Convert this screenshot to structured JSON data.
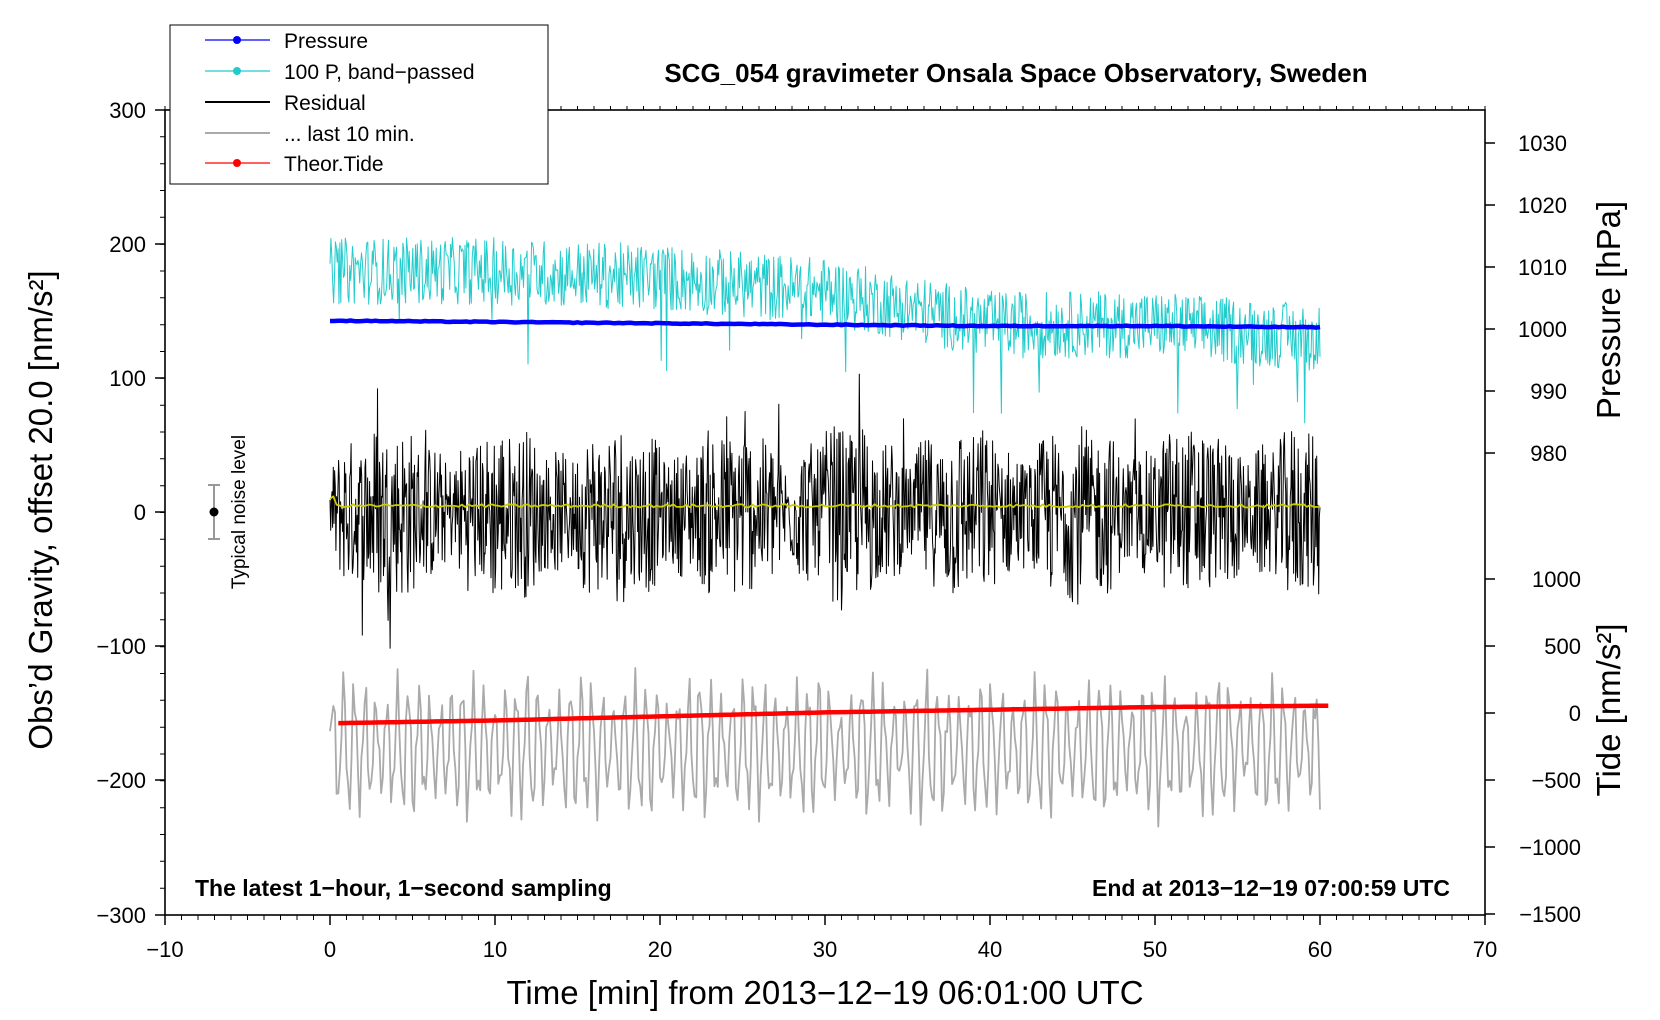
{
  "chart_data": {
    "type": "line",
    "title": "SCG_054 gravimeter Onsala Space Observatory, Sweden",
    "xlabel": "Time [min] from 2013−12−19 06:01:00 UTC",
    "ylabel_left": "Obs’d Gravity, offset 20.0 [nm/s²]",
    "ylabel_right_pressure": "Pressure [hPa]",
    "ylabel_right_tide": "Tide [nm/s²]",
    "xlim": [
      -10,
      70
    ],
    "ylim_left": [
      -300,
      300
    ],
    "x_ticks": [
      "−10",
      "0",
      "10",
      "20",
      "30",
      "40",
      "50",
      "60",
      "70"
    ],
    "x_tick_values": [
      -10,
      0,
      10,
      20,
      30,
      40,
      50,
      60,
      70
    ],
    "y_ticks_left": [
      "300",
      "200",
      "100",
      "0",
      "−100",
      "−200",
      "−300"
    ],
    "y_tick_values_left": [
      300,
      200,
      100,
      0,
      -100,
      -200,
      -300
    ],
    "pressure_axis": {
      "ticks": [
        "1030",
        "1020",
        "1010",
        "1000",
        "990",
        "980"
      ],
      "values": [
        1030,
        1020,
        1010,
        1000,
        990,
        980
      ],
      "gravity_equivalent_at_1000": 142.0,
      "gravity_per_hpa": 3.72
    },
    "tide_axis": {
      "ticks": [
        "1000",
        "500",
        "0",
        "−500",
        "−1000",
        "−1500"
      ],
      "values": [
        1000,
        500,
        0,
        -500,
        -1000,
        -1500
      ],
      "gravity_equivalent_at_0": -150.0,
      "gravity_per_unit": 0.1
    },
    "legend": [
      {
        "label": "Pressure",
        "color": "#0000ff",
        "marker": "dot"
      },
      {
        "label": "100 P, band−passed",
        "color": "#22cccc",
        "marker": "dot"
      },
      {
        "label": "Residual",
        "color": "#000000",
        "marker": "line"
      },
      {
        "label": "... last 10 min.",
        "color": "#aaaaaa",
        "marker": "line"
      },
      {
        "label": "Theor.Tide",
        "color": "#ff0000",
        "marker": "dot"
      }
    ],
    "series": [
      {
        "name": "Pressure",
        "color": "#0000ff",
        "x_range": [
          0,
          60
        ],
        "gravity_equiv": [
          [
            0,
            143
          ],
          [
            10,
            142
          ],
          [
            20,
            141
          ],
          [
            30,
            140
          ],
          [
            40,
            139
          ],
          [
            50,
            139
          ],
          [
            60,
            138
          ]
        ]
      },
      {
        "name": "100 P, band−passed",
        "color": "#22cccc",
        "x_range": [
          0,
          60
        ],
        "center": [
          [
            0,
            180
          ],
          [
            10,
            180
          ],
          [
            20,
            175
          ],
          [
            30,
            165
          ],
          [
            40,
            140
          ],
          [
            50,
            140
          ],
          [
            60,
            130
          ]
        ],
        "amplitude": 25
      },
      {
        "name": "Residual",
        "color": "#000000",
        "x_range": [
          0,
          60
        ],
        "center": 0,
        "amplitude": 55
      },
      {
        "name": "Residual smoothed",
        "color": "#cccc00",
        "x_range": [
          0,
          60
        ],
        "value": 5
      },
      {
        "name": "... last 10 min.",
        "color": "#aaaaaa",
        "x_range": [
          0,
          60
        ],
        "center": -175,
        "amplitude": 60
      },
      {
        "name": "Theor.Tide",
        "color": "#ff0000",
        "x_range": [
          0.5,
          60.5
        ],
        "gravity_equiv": [
          [
            0.5,
            -157
          ],
          [
            10,
            -155
          ],
          [
            20,
            -152
          ],
          [
            30,
            -149
          ],
          [
            40,
            -147
          ],
          [
            50,
            -145
          ],
          [
            60.5,
            -144
          ]
        ]
      }
    ],
    "noise_bar": {
      "label": "Typical noise level",
      "x": -7,
      "y": 0,
      "error": 20
    },
    "annotations": {
      "bottom_left": "The latest 1−hour, 1−second sampling",
      "bottom_right": "End at 2013−12−19 07:00:59 UTC"
    }
  }
}
